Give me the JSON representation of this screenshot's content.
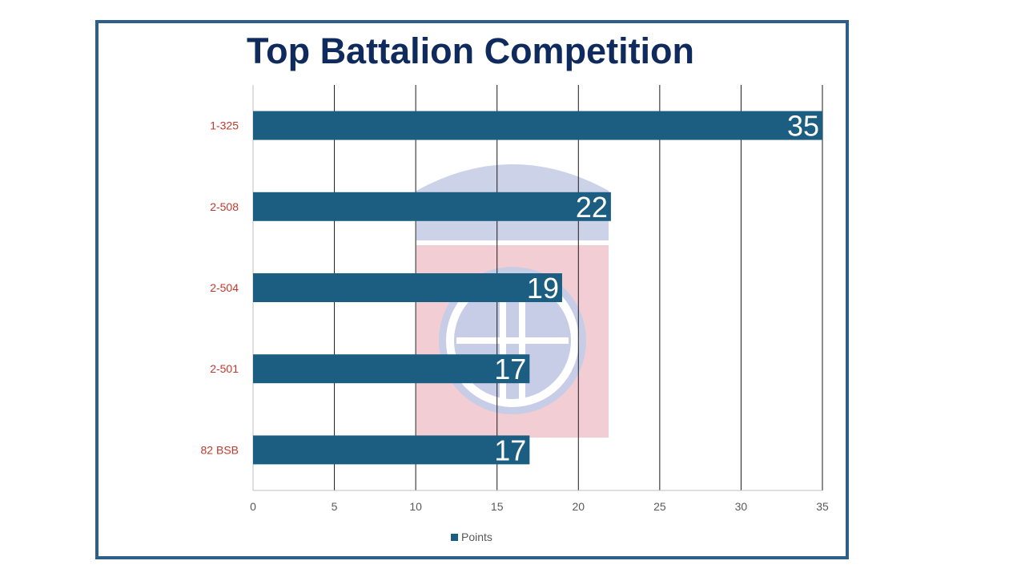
{
  "chart_data": {
    "type": "bar",
    "orientation": "horizontal",
    "title": "Top Battalion Competition",
    "categories": [
      "1-325",
      "2-508",
      "2-504",
      "2-501",
      "82 BSB"
    ],
    "series": [
      {
        "name": "Points",
        "values": [
          35,
          22,
          19,
          17,
          17
        ],
        "color": "#1b5e82"
      }
    ],
    "xlim": [
      0,
      35
    ],
    "xticks": [
      "0",
      "5",
      "10",
      "15",
      "20",
      "25",
      "30",
      "35"
    ],
    "grid": true,
    "legend": "bottom",
    "category_color": "#c0392b"
  },
  "colors": {
    "frame_border": "#2e5f8a",
    "title": "#0f2a5c",
    "bar": "#1b5e82",
    "watermark_blue": "#c7cde6",
    "watermark_red": "#f2cdd3"
  },
  "watermark": {
    "icon": "airborne-division-insignia-icon"
  }
}
